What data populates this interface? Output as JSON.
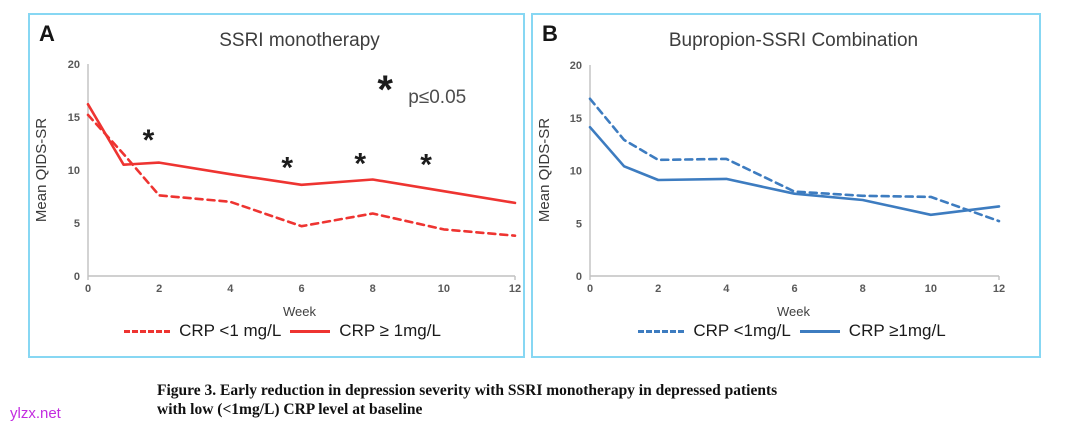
{
  "watermark": "ylzx.net",
  "caption": {
    "line1": "Figure 3. Early reduction in depression severity with SSRI monotherapy in depressed patients",
    "line2": "with low (<1mg/L) CRP level at baseline"
  },
  "colors": {
    "red_series": "#ee3431",
    "blue_series": "#3d7cc0",
    "panel_border": "#87d7f3",
    "axis_gray": "#c0c0c0",
    "tick_text": "#595959",
    "watermark": "#c32ce0"
  },
  "chart_data": [
    {
      "id": "panel-a",
      "panel_letter": "A",
      "title": "SSRI monotherapy",
      "type": "line",
      "xlabel": "Week",
      "ylabel": "Mean QIDS-SR",
      "xlim": [
        0,
        12
      ],
      "ylim": [
        0,
        20
      ],
      "x_ticks": [
        0,
        2,
        4,
        6,
        8,
        10,
        12
      ],
      "y_ticks": [
        0,
        5,
        10,
        15,
        20
      ],
      "grid": false,
      "legend_position": "bottom",
      "x": [
        0,
        1,
        2,
        4,
        6,
        8,
        10,
        12
      ],
      "series": [
        {
          "name": "CRP <1 mg/L",
          "style": "dashed",
          "color": "#ee3431",
          "values": [
            15.2,
            11.5,
            7.6,
            7.0,
            4.7,
            5.9,
            4.4,
            3.8
          ]
        },
        {
          "name": "CRP ≥ 1mg/L",
          "style": "solid",
          "color": "#ee3431",
          "values": [
            16.2,
            10.5,
            10.7,
            9.6,
            8.6,
            9.1,
            8.0,
            6.9
          ]
        }
      ],
      "annotations": {
        "stars": [
          {
            "week": 1.7,
            "value": 13.3
          },
          {
            "week": 5.6,
            "value": 10.7
          },
          {
            "week": 7.65,
            "value": 11.1
          },
          {
            "week": 9.5,
            "value": 11.0
          }
        ],
        "sig_star": {
          "week": 8.35,
          "value": 18.2
        },
        "sig_label": "p≤0.05",
        "sig_label_pos": {
          "week": 9.0,
          "value": 16.3
        }
      }
    },
    {
      "id": "panel-b",
      "panel_letter": "B",
      "title": "Bupropion-SSRI Combination",
      "type": "line",
      "xlabel": "Week",
      "ylabel": "Mean QIDS-SR",
      "xlim": [
        0,
        12
      ],
      "ylim": [
        0,
        20
      ],
      "x_ticks": [
        0,
        2,
        4,
        6,
        8,
        10,
        12
      ],
      "y_ticks": [
        0,
        5,
        10,
        15,
        20
      ],
      "grid": false,
      "legend_position": "bottom",
      "x": [
        0,
        1,
        2,
        4,
        6,
        8,
        10,
        12
      ],
      "series": [
        {
          "name": "CRP <1mg/L",
          "style": "dashed",
          "color": "#3d7cc0",
          "values": [
            16.8,
            12.9,
            11.0,
            11.1,
            8.0,
            7.6,
            7.5,
            5.2
          ]
        },
        {
          "name": "CRP ≥1mg/L",
          "style": "solid",
          "color": "#3d7cc0",
          "values": [
            14.1,
            10.4,
            9.1,
            9.2,
            7.8,
            7.2,
            5.8,
            6.6
          ]
        }
      ],
      "annotations": {
        "stars": []
      }
    }
  ]
}
